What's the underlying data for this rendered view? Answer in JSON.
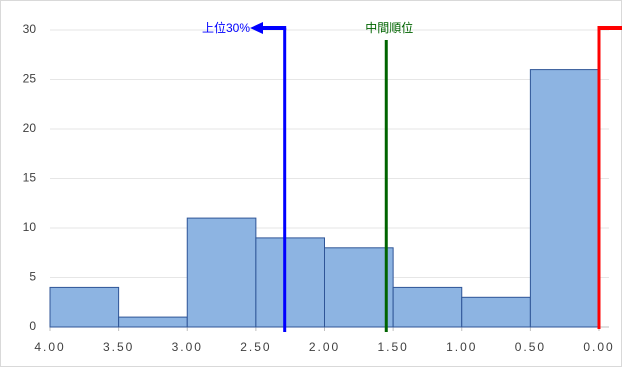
{
  "chart_data": {
    "type": "histogram",
    "bins": [
      4.0,
      3.5,
      3.0,
      2.5,
      2.0,
      1.5,
      1.0,
      0.5,
      0.0
    ],
    "counts": [
      4,
      1,
      11,
      9,
      8,
      4,
      3,
      26
    ],
    "color": "#8db4e2",
    "edge_color": "#2f5597",
    "xlim": [
      4.0,
      0.0
    ],
    "ylim": [
      0,
      30
    ],
    "xticks": [
      {
        "value": 4.0,
        "label": "4.00"
      },
      {
        "value": 3.5,
        "label": "3.50"
      },
      {
        "value": 3.0,
        "label": "3.00"
      },
      {
        "value": 2.5,
        "label": "2.50"
      },
      {
        "value": 2.0,
        "label": "2.00"
      },
      {
        "value": 1.5,
        "label": "1.50"
      },
      {
        "value": 1.0,
        "label": "1.00"
      },
      {
        "value": 0.5,
        "label": "0.50"
      },
      {
        "value": 0.0,
        "label": "0.00"
      }
    ],
    "yticks": [
      0,
      5,
      10,
      15,
      20,
      25,
      30
    ],
    "grid": true,
    "markers": [
      {
        "label": "上位30%",
        "value": 2.29,
        "color": "#0000ff"
      },
      {
        "label": "中間順位",
        "value": 1.55,
        "color": "#006400"
      },
      {
        "value": 0.0,
        "color": "#ff0000"
      }
    ]
  }
}
